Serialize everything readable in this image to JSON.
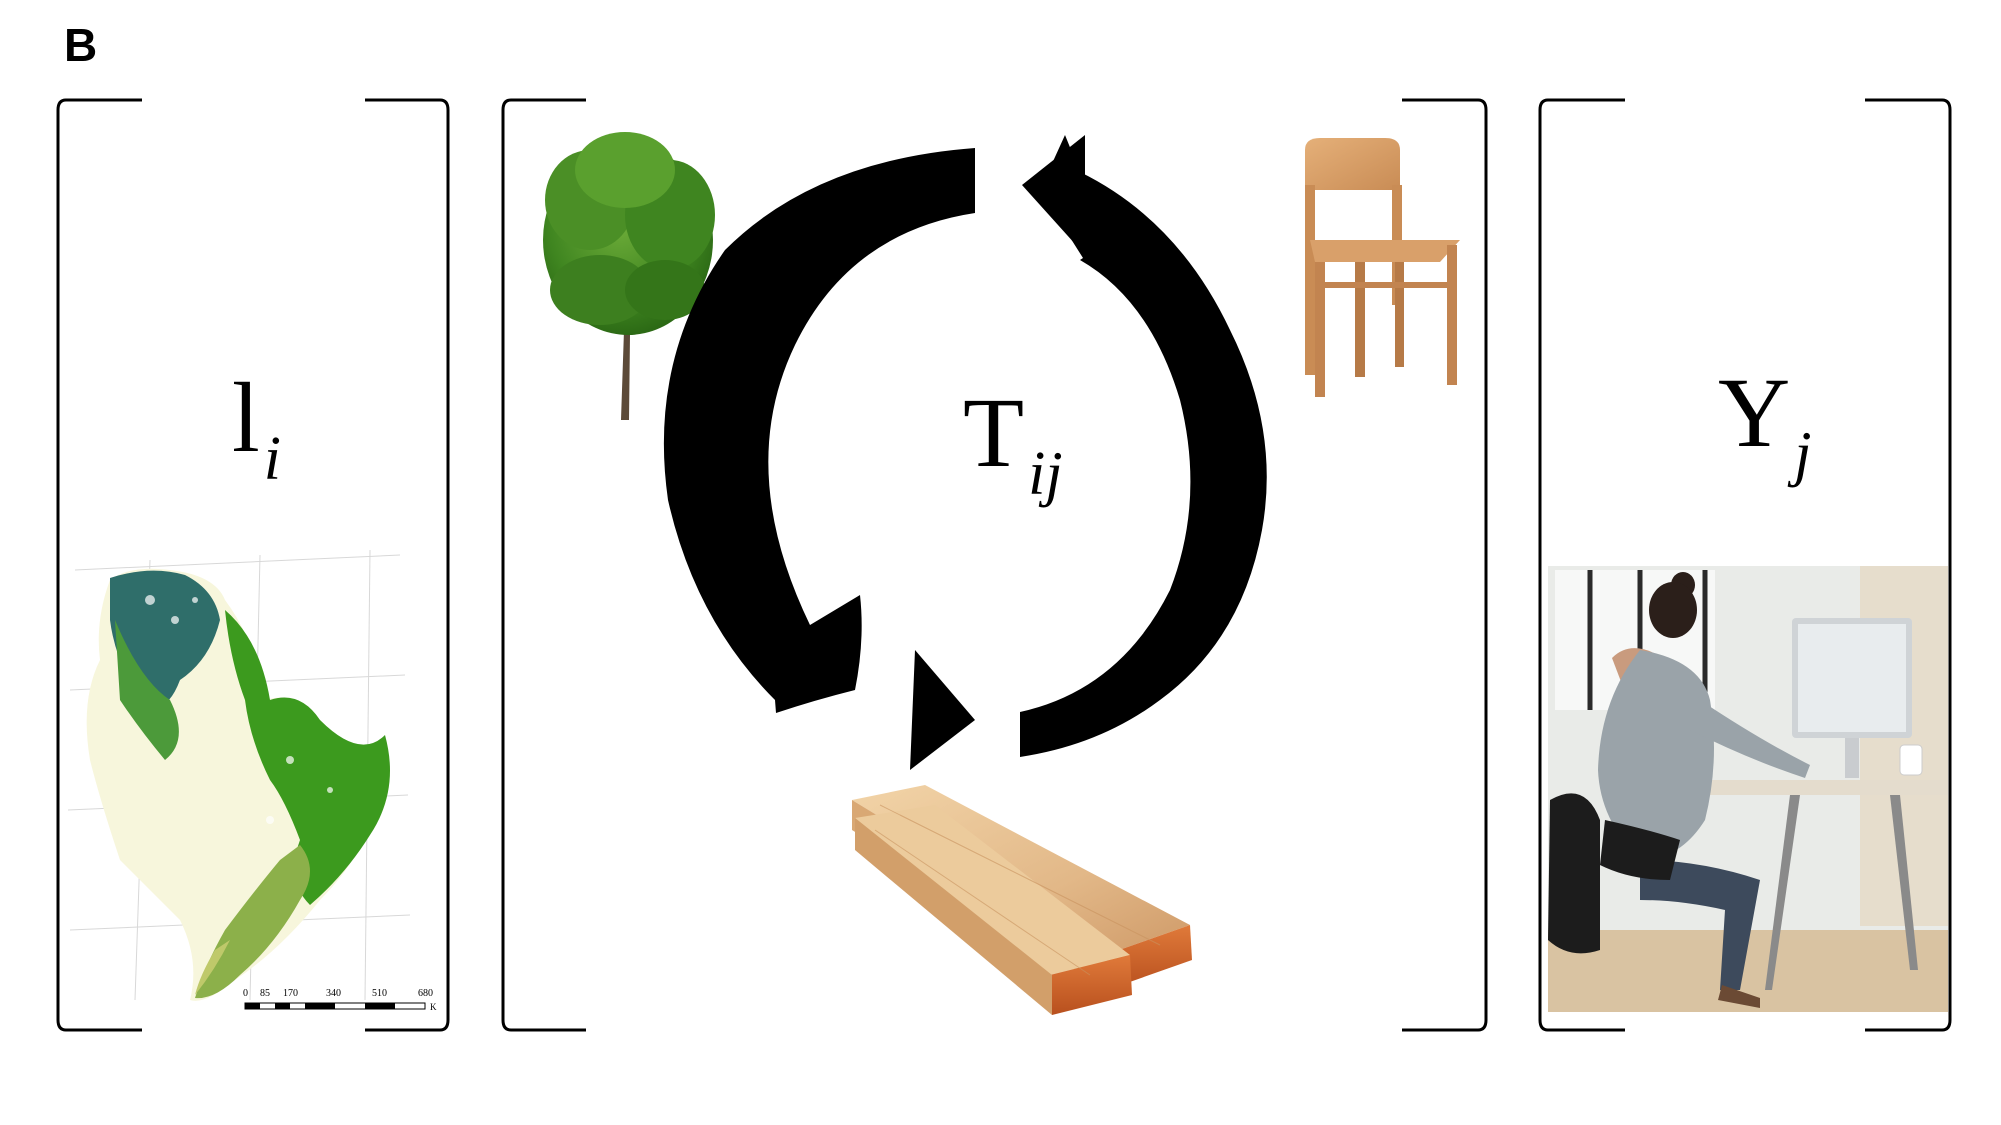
{
  "panel": {
    "label": "B"
  },
  "symbols": {
    "left": {
      "main": "l",
      "sub": "i"
    },
    "center": {
      "main": "T",
      "sub": "ij"
    },
    "right": {
      "main": "Y",
      "sub": "j"
    }
  },
  "map_scale": {
    "ticks": [
      "0",
      "85",
      "170",
      "340",
      "510",
      "680"
    ],
    "unit": "K"
  },
  "icons": [
    "forest-map",
    "tree-icon",
    "chair-icon",
    "lumber-icon",
    "office-worker-photo",
    "cycle-arrows"
  ]
}
